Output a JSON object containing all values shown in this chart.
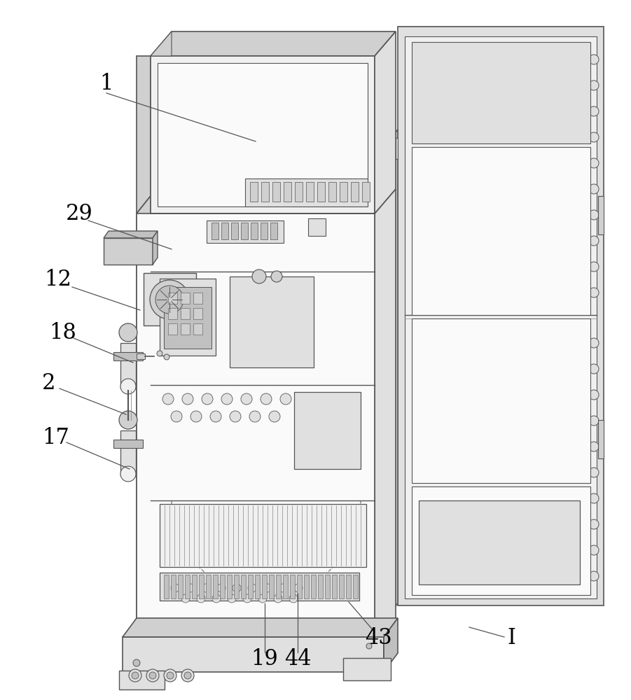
{
  "bg": "#ffffff",
  "lc": "#555555",
  "lc_thin": "#888888",
  "fill_light": "#f0f0f0",
  "fill_mid": "#e0e0e0",
  "fill_dark": "#d0d0d0",
  "fill_darker": "#c0c0c0",
  "fill_white": "#fafafa",
  "labels": [
    [
      "1",
      152,
      120
    ],
    [
      "29",
      113,
      305
    ],
    [
      "12",
      83,
      400
    ],
    [
      "18",
      90,
      475
    ],
    [
      "2",
      70,
      548
    ],
    [
      "17",
      80,
      625
    ],
    [
      "19",
      378,
      942
    ],
    [
      "44",
      425,
      942
    ],
    [
      "43",
      540,
      912
    ],
    [
      "I",
      730,
      912
    ]
  ],
  "label_lines": [
    [
      152,
      133,
      365,
      202
    ],
    [
      126,
      315,
      245,
      356
    ],
    [
      103,
      410,
      200,
      443
    ],
    [
      105,
      483,
      190,
      518
    ],
    [
      85,
      555,
      180,
      592
    ],
    [
      95,
      632,
      185,
      670
    ],
    [
      378,
      932,
      378,
      862
    ],
    [
      425,
      932,
      425,
      848
    ],
    [
      535,
      903,
      498,
      860
    ],
    [
      720,
      910,
      670,
      896
    ]
  ]
}
